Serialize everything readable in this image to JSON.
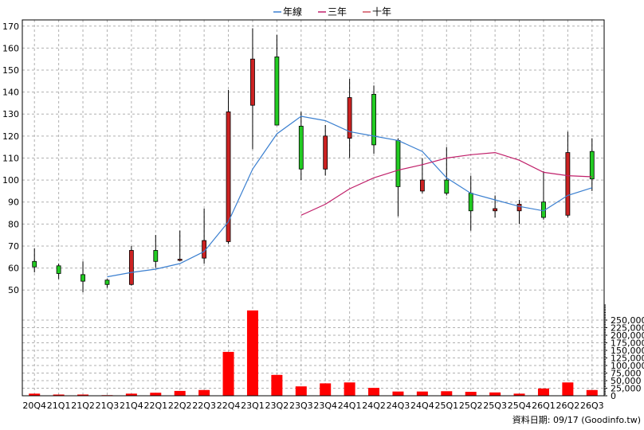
{
  "chart_data": {
    "type": "candlestick",
    "legend": {
      "placement": "top-center",
      "items": [
        {
          "name": "年線",
          "color": "#3a7fd0"
        },
        {
          "name": "三年",
          "color": "#c0206a"
        },
        {
          "name": "十年",
          "color": "#d05060"
        }
      ]
    },
    "categories": [
      "20Q4",
      "21Q1",
      "21Q2",
      "21Q3",
      "21Q4",
      "22Q1",
      "22Q2",
      "22Q3",
      "22Q4",
      "23Q1",
      "23Q2",
      "23Q3",
      "23Q4",
      "24Q1",
      "24Q2",
      "24Q3",
      "24Q4",
      "25Q1",
      "25Q2",
      "25Q3",
      "25Q4",
      "26Q1",
      "26Q2",
      "26Q3"
    ],
    "price_axis": {
      "ylim": [
        45,
        171
      ],
      "ticks": [
        50,
        60,
        70,
        80,
        90,
        100,
        110,
        120,
        130,
        140,
        150,
        160,
        170
      ],
      "position": "left"
    },
    "candles": [
      {
        "o": 60.5,
        "h": 69,
        "l": 58,
        "c": 63,
        "color": "green"
      },
      {
        "o": 57.5,
        "h": 62,
        "l": 55,
        "c": 61,
        "color": "green"
      },
      {
        "o": 54,
        "h": 63,
        "l": 49,
        "c": 57,
        "color": "green"
      },
      {
        "o": 52.5,
        "h": 55,
        "l": 51,
        "c": 54.5,
        "color": "green"
      },
      {
        "o": 68,
        "h": 70,
        "l": 52,
        "c": 52.5,
        "color": "red"
      },
      {
        "o": 63,
        "h": 75,
        "l": 60,
        "c": 68,
        "color": "green"
      },
      {
        "o": 64,
        "h": 77,
        "l": 63,
        "c": 64,
        "color": "red"
      },
      {
        "o": 72.5,
        "h": 87,
        "l": 62,
        "c": 64.5,
        "color": "red"
      },
      {
        "o": 131,
        "h": 141,
        "l": 71,
        "c": 72,
        "color": "red"
      },
      {
        "o": 155,
        "h": 169,
        "l": 114,
        "c": 134,
        "color": "red"
      },
      {
        "o": 125,
        "h": 166,
        "l": 125,
        "c": 156,
        "color": "green"
      },
      {
        "o": 105,
        "h": 131,
        "l": 100,
        "c": 124.5,
        "color": "green"
      },
      {
        "o": 120,
        "h": 125,
        "l": 102,
        "c": 105,
        "color": "red"
      },
      {
        "o": 137.5,
        "h": 146,
        "l": 110,
        "c": 119,
        "color": "red"
      },
      {
        "o": 116,
        "h": 143,
        "l": 112,
        "c": 139,
        "color": "green"
      },
      {
        "o": 97,
        "h": 119,
        "l": 83.5,
        "c": 118,
        "color": "green"
      },
      {
        "o": 100,
        "h": 110,
        "l": 94,
        "c": 95,
        "color": "red"
      },
      {
        "o": 94,
        "h": 115,
        "l": 93,
        "c": 100,
        "color": "green"
      },
      {
        "o": 86,
        "h": 102,
        "l": 77,
        "c": 94,
        "color": "green"
      },
      {
        "o": 86,
        "h": 93,
        "l": 83,
        "c": 87,
        "color": "red"
      },
      {
        "o": 89,
        "h": 91,
        "l": 80,
        "c": 86,
        "color": "red"
      },
      {
        "o": 83,
        "h": 104,
        "l": 82,
        "c": 90,
        "color": "green"
      },
      {
        "o": 112.5,
        "h": 122,
        "l": 83,
        "c": 84,
        "color": "red"
      },
      {
        "o": 100.5,
        "h": 119,
        "l": 95,
        "c": 113,
        "color": "green"
      }
    ],
    "series": [
      {
        "name": "年線",
        "color": "#3a7fd0",
        "values": [
          null,
          null,
          null,
          56,
          58,
          59.5,
          62,
          67.5,
          81,
          105,
          121,
          129,
          127,
          122,
          120,
          118,
          113,
          101,
          94,
          91,
          88,
          86,
          93,
          96.5
        ]
      },
      {
        "name": "三年",
        "color": "#c0206a",
        "values": [
          null,
          null,
          null,
          null,
          null,
          null,
          null,
          null,
          null,
          null,
          null,
          84,
          89,
          96,
          101,
          104.5,
          107,
          110,
          111.5,
          112.5,
          109,
          103.5,
          102,
          101.5
        ]
      }
    ],
    "volume_axis": {
      "ylim": [
        0,
        300000
      ],
      "ticks": [
        0,
        25000,
        50000,
        75000,
        100000,
        125000,
        150000,
        175000,
        200000,
        225000,
        250000
      ],
      "tick_labels": [
        "0",
        "25,000",
        "50,000",
        "75,000",
        "100,000",
        "125,000",
        "150,000",
        "175,000",
        "200,000",
        "225,000",
        "250,000"
      ],
      "position": "right"
    },
    "volumes": [
      7000,
      4000,
      4000,
      2000,
      7000,
      10000,
      16000,
      19000,
      145000,
      282000,
      69000,
      31000,
      41000,
      44000,
      26000,
      14000,
      14000,
      15000,
      13000,
      11000,
      7000,
      24000,
      44000,
      19000
    ],
    "volume_color": "#ff0000",
    "grid": true
  },
  "footer": "資料日期: 09/17  (Goodinfo.tw)"
}
